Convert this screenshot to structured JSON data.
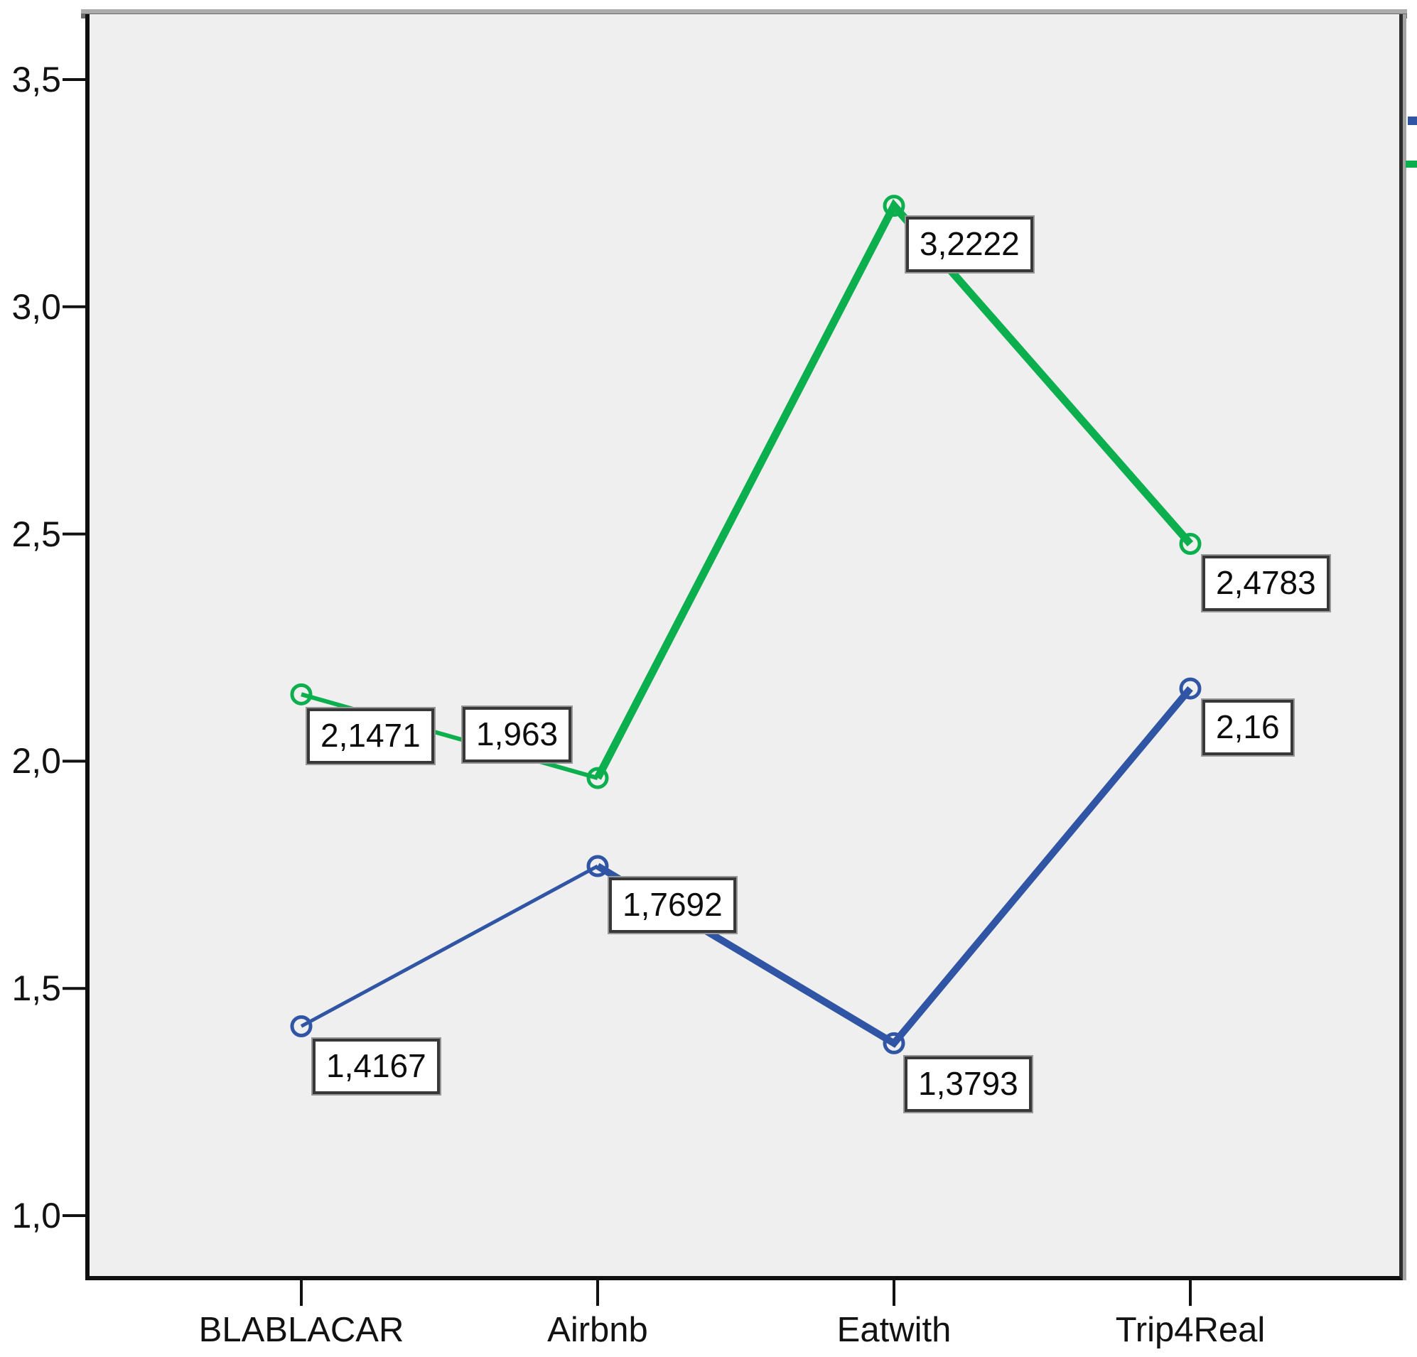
{
  "chart_data": {
    "type": "line",
    "title": "",
    "xlabel": "",
    "ylabel": "",
    "categories": [
      "BLABLACAR",
      "Airbnb",
      "Eatwith",
      "Trip4Real"
    ],
    "series": [
      {
        "name": "green-series",
        "color": "#0caf4d",
        "values": [
          2.1471,
          1.963,
          3.2222,
          2.4783
        ],
        "point_labels": [
          "2,1471",
          "1,963",
          "3,2222",
          "2,4783"
        ]
      },
      {
        "name": "blue-series",
        "color": "#2f55a4",
        "values": [
          1.4167,
          1.7692,
          1.3793,
          2.16
        ],
        "point_labels": [
          "1,4167",
          "1,7692",
          "1,3793",
          "2,16"
        ]
      }
    ],
    "ytick_labels": [
      "3,5",
      "3,0",
      "2,5",
      "2,0",
      "1,5",
      "1,0"
    ],
    "ytick_values": [
      3.5,
      3.0,
      2.5,
      2.0,
      1.5,
      1.0
    ],
    "ylim": [
      0.86,
      3.64
    ],
    "grid": false,
    "decimal_separator": ",",
    "marker": "open-circle",
    "plot_background": "#efefef",
    "legend_position": "right-edge-cropped"
  }
}
